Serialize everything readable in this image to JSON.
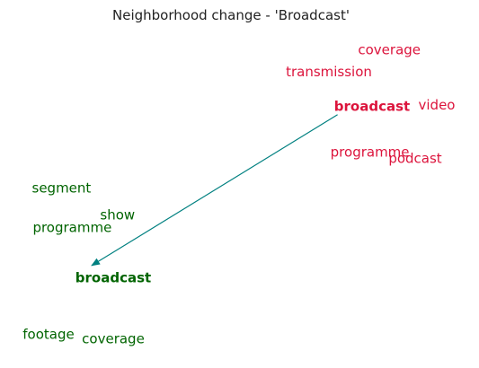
{
  "chart_data": {
    "type": "scatter",
    "title": "Neighborhood change - 'Broadcast'",
    "xlabel": "",
    "ylabel": "",
    "grid": false,
    "colors": {
      "old": "#dc143c",
      "new": "#006400",
      "arrow": "#008080"
    },
    "series": [
      {
        "words": [
          {
            "text": "coverage",
            "x": 0.84,
            "y": 0.94,
            "bold": false
          },
          {
            "text": "transmission",
            "x": 0.7,
            "y": 0.87,
            "bold": false
          },
          {
            "text": "broadcast",
            "x": 0.8,
            "y": 0.76,
            "bold": true
          },
          {
            "text": "video",
            "x": 0.95,
            "y": 0.765,
            "bold": false
          },
          {
            "text": "programme",
            "x": 0.795,
            "y": 0.615,
            "bold": false
          },
          {
            "text": "podcast",
            "x": 0.9,
            "y": 0.595,
            "bold": false
          }
        ]
      },
      {
        "words": [
          {
            "text": "segment",
            "x": 0.08,
            "y": 0.5,
            "bold": false
          },
          {
            "text": "show",
            "x": 0.21,
            "y": 0.415,
            "bold": false
          },
          {
            "text": "programme",
            "x": 0.105,
            "y": 0.375,
            "bold": false
          },
          {
            "text": "broadcast",
            "x": 0.2,
            "y": 0.215,
            "bold": true
          },
          {
            "text": "footage",
            "x": 0.05,
            "y": 0.035,
            "bold": false
          },
          {
            "text": "coverage",
            "x": 0.2,
            "y": 0.02,
            "bold": false
          }
        ]
      }
    ],
    "arrow": {
      "from": {
        "x": 0.72,
        "y": 0.735
      },
      "to": {
        "x": 0.15,
        "y": 0.255
      }
    }
  }
}
